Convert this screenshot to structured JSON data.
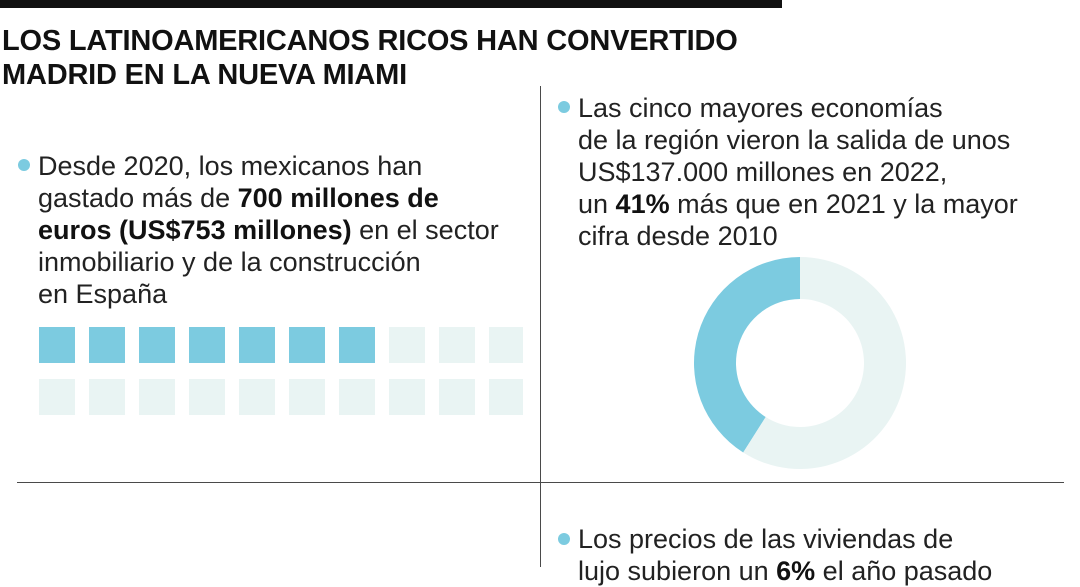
{
  "headline": {
    "line1": "LOS LATINOAMERICANOS RICOS HAN CONVERTIDO",
    "line2": "MADRID EN LA NUEVA MIAMI"
  },
  "colors": {
    "accent": "#7ccbe0",
    "inactive": "#e9f4f3",
    "text": "#222222",
    "rule": "#111111"
  },
  "stat_spending": {
    "line1": "Desde 2020, los mexicanos han",
    "line2_pre": "gastado más de ",
    "line2_bold": "700 millones de",
    "line3_bold": "euros (US$753 millones)",
    "line3_post": " en el sector",
    "line4": "inmobiliario y de la construcción",
    "line5": "en España"
  },
  "stat_outflow": {
    "line1": "Las cinco mayores economías",
    "line2": "de la región vieron la salida de unos",
    "line3": "US$137.000 millones en 2022,",
    "line4_pre": "un ",
    "line4_bold": "41%",
    "line4_post": " más que en 2021 y la mayor",
    "line5": "cifra desde 2010"
  },
  "stat_prices": {
    "line1": "Los precios de las viviendas de",
    "line2_pre": "lujo subieron un ",
    "line2_bold": "6%",
    "line2_post": " el año pasado"
  },
  "chart_data": [
    {
      "type": "waffle",
      "rows": 2,
      "columns": 10,
      "total_cells": 20,
      "filled_cells": 7
    },
    {
      "type": "pie",
      "variant": "donut",
      "slices": [
        {
          "value": 41,
          "highlighted": true
        },
        {
          "value": 59,
          "highlighted": false
        }
      ]
    }
  ]
}
